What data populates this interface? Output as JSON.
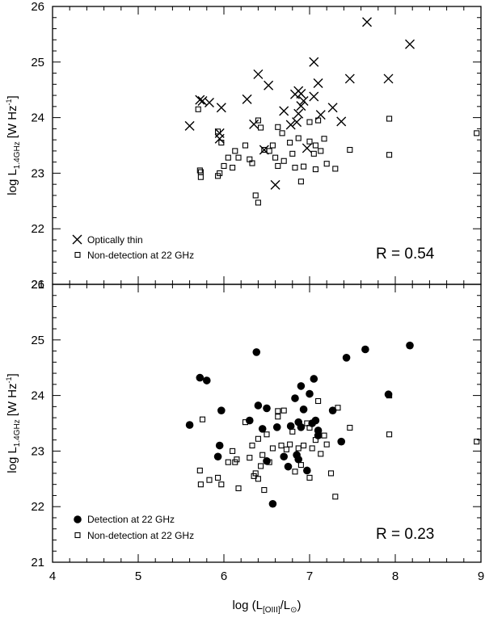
{
  "figure": {
    "top_panel": {
      "ylabel": {
        "main": "log L",
        "sub": "1.4GHz",
        "unit": "[W Hz",
        "unit_sup": "-1",
        "unit_close": "]"
      },
      "legend": [
        "Optically thin",
        "Non-detection at 22 GHz"
      ],
      "r_label": "R = 0.54"
    },
    "bottom_panel": {
      "ylabel": {
        "main": "log L",
        "sub": "1.4GHz",
        "unit": "[W Hz",
        "unit_sup": "-1",
        "unit_close": "]"
      },
      "legend": [
        "Detection at 22 GHz",
        "Non-detection at 22 GHz"
      ],
      "r_label": "R = 0.23"
    },
    "xlabel": {
      "prefix": "log (L",
      "sub": "[OIII]",
      "mid": "/L",
      "sub2": "⊙",
      "suffix": ")"
    }
  },
  "chart_data": [
    {
      "type": "scatter",
      "title": "",
      "xlabel": "log (L[OIII]/L⊙)",
      "ylabel": "log L1.4GHz [W Hz-1]",
      "xlim": [
        4,
        9
      ],
      "ylim": [
        21,
        26
      ],
      "xticks": [
        4,
        5,
        6,
        7,
        8,
        9
      ],
      "yticks": [
        21,
        22,
        23,
        24,
        25,
        26
      ],
      "xtick_labels": [
        "4",
        "5",
        "6",
        "7",
        "8",
        "9"
      ],
      "ytick_labels": [
        "21",
        "22",
        "23",
        "24",
        "25",
        "26"
      ],
      "grid": false,
      "legend_position": "bottom-left",
      "annotation": "R = 0.54",
      "series": [
        {
          "name": "Optically thin",
          "marker": "x",
          "points": [
            [
              5.6,
              23.85
            ],
            [
              5.72,
              24.32
            ],
            [
              5.75,
              24.3
            ],
            [
              5.83,
              24.27
            ],
            [
              5.95,
              23.72
            ],
            [
              5.95,
              23.62
            ],
            [
              5.97,
              24.18
            ],
            [
              6.27,
              24.33
            ],
            [
              6.35,
              23.88
            ],
            [
              6.4,
              24.78
            ],
            [
              6.47,
              23.42
            ],
            [
              6.52,
              24.58
            ],
            [
              6.6,
              22.79
            ],
            [
              6.7,
              24.12
            ],
            [
              6.78,
              23.87
            ],
            [
              6.83,
              24.42
            ],
            [
              6.85,
              23.92
            ],
            [
              6.87,
              24.48
            ],
            [
              6.87,
              24.07
            ],
            [
              6.9,
              24.21
            ],
            [
              6.9,
              24.43
            ],
            [
              6.93,
              24.3
            ],
            [
              6.97,
              23.45
            ],
            [
              7.05,
              25.0
            ],
            [
              7.05,
              24.38
            ],
            [
              7.1,
              24.62
            ],
            [
              7.13,
              24.05
            ],
            [
              7.27,
              24.18
            ],
            [
              7.37,
              23.93
            ],
            [
              7.47,
              24.7
            ],
            [
              7.67,
              25.72
            ],
            [
              7.92,
              24.7
            ],
            [
              8.17,
              25.32
            ]
          ]
        },
        {
          "name": "Non-detection at 22 GHz",
          "marker": "square",
          "points": [
            [
              5.7,
              24.15
            ],
            [
              5.72,
              23.05
            ],
            [
              5.73,
              22.93
            ],
            [
              5.93,
              23.75
            ],
            [
              5.93,
              22.95
            ],
            [
              5.95,
              23.0
            ],
            [
              5.97,
              23.55
            ],
            [
              6.0,
              23.13
            ],
            [
              6.05,
              23.28
            ],
            [
              6.1,
              23.1
            ],
            [
              6.13,
              23.4
            ],
            [
              6.17,
              23.28
            ],
            [
              6.25,
              23.5
            ],
            [
              6.3,
              23.25
            ],
            [
              6.33,
              23.18
            ],
            [
              6.37,
              22.6
            ],
            [
              6.4,
              22.47
            ],
            [
              6.4,
              23.95
            ],
            [
              6.43,
              23.82
            ],
            [
              6.47,
              23.42
            ],
            [
              6.53,
              23.4
            ],
            [
              6.57,
              23.5
            ],
            [
              6.6,
              23.28
            ],
            [
              6.63,
              23.13
            ],
            [
              6.68,
              23.72
            ],
            [
              6.7,
              23.22
            ],
            [
              6.77,
              23.55
            ],
            [
              6.8,
              23.35
            ],
            [
              6.83,
              23.1
            ],
            [
              6.87,
              23.63
            ],
            [
              6.9,
              22.85
            ],
            [
              6.93,
              23.12
            ],
            [
              7.0,
              23.57
            ],
            [
              7.05,
              23.35
            ],
            [
              7.07,
              23.5
            ],
            [
              7.07,
              23.07
            ],
            [
              7.1,
              23.95
            ],
            [
              7.13,
              23.4
            ],
            [
              7.17,
              23.62
            ],
            [
              7.2,
              23.17
            ],
            [
              7.3,
              23.08
            ],
            [
              7.47,
              23.42
            ],
            [
              5.73,
              23.02
            ],
            [
              6.63,
              23.83
            ],
            [
              7.0,
              23.92
            ],
            [
              7.93,
              23.33
            ],
            [
              7.93,
              23.98
            ],
            [
              8.95,
              23.72
            ]
          ]
        }
      ]
    },
    {
      "type": "scatter",
      "title": "",
      "xlabel": "log (L[OIII]/L⊙)",
      "ylabel": "log L1.4GHz [W Hz-1]",
      "xlim": [
        4,
        9
      ],
      "ylim": [
        21,
        26
      ],
      "xticks": [
        4,
        5,
        6,
        7,
        8,
        9
      ],
      "yticks": [
        21,
        22,
        23,
        24,
        25,
        26
      ],
      "xtick_labels": [
        "4",
        "5",
        "6",
        "7",
        "8",
        "9"
      ],
      "ytick_labels": [
        "21",
        "22",
        "23",
        "24",
        "25",
        "26"
      ],
      "grid": false,
      "legend_position": "bottom-left",
      "annotation": "R = 0.23",
      "series": [
        {
          "name": "Detection at 22 GHz",
          "marker": "circle",
          "points": [
            [
              5.6,
              23.47
            ],
            [
              5.72,
              24.32
            ],
            [
              5.8,
              24.27
            ],
            [
              5.93,
              22.9
            ],
            [
              5.95,
              23.1
            ],
            [
              5.97,
              23.73
            ],
            [
              6.3,
              23.55
            ],
            [
              6.38,
              24.78
            ],
            [
              6.4,
              23.82
            ],
            [
              6.45,
              23.4
            ],
            [
              6.5,
              23.77
            ],
            [
              6.5,
              22.82
            ],
            [
              6.57,
              22.05
            ],
            [
              6.62,
              23.43
            ],
            [
              6.7,
              22.9
            ],
            [
              6.75,
              22.72
            ],
            [
              6.78,
              23.45
            ],
            [
              6.83,
              23.95
            ],
            [
              6.85,
              22.93
            ],
            [
              6.87,
              23.52
            ],
            [
              6.87,
              22.85
            ],
            [
              6.9,
              24.17
            ],
            [
              6.9,
              23.43
            ],
            [
              6.93,
              23.75
            ],
            [
              6.97,
              22.65
            ],
            [
              7.0,
              24.03
            ],
            [
              7.05,
              24.3
            ],
            [
              7.07,
              23.55
            ],
            [
              7.1,
              23.37
            ],
            [
              7.27,
              23.73
            ],
            [
              7.37,
              23.17
            ],
            [
              7.43,
              24.68
            ],
            [
              7.65,
              24.83
            ],
            [
              7.92,
              24.02
            ],
            [
              8.17,
              24.9
            ],
            [
              7.1,
              23.28
            ],
            [
              7.03,
              23.5
            ]
          ]
        },
        {
          "name": "Non-detection at 22 GHz",
          "marker": "square",
          "points": [
            [
              5.72,
              22.65
            ],
            [
              5.73,
              22.4
            ],
            [
              5.75,
              23.57
            ],
            [
              5.83,
              22.48
            ],
            [
              5.93,
              22.52
            ],
            [
              5.97,
              22.4
            ],
            [
              6.05,
              22.8
            ],
            [
              6.1,
              23.0
            ],
            [
              6.13,
              22.8
            ],
            [
              6.15,
              22.85
            ],
            [
              6.17,
              22.33
            ],
            [
              6.25,
              23.52
            ],
            [
              6.3,
              22.88
            ],
            [
              6.33,
              23.1
            ],
            [
              6.35,
              22.55
            ],
            [
              6.37,
              22.6
            ],
            [
              6.4,
              22.5
            ],
            [
              6.4,
              23.22
            ],
            [
              6.43,
              22.73
            ],
            [
              6.45,
              22.93
            ],
            [
              6.47,
              22.3
            ],
            [
              6.5,
              23.3
            ],
            [
              6.53,
              22.8
            ],
            [
              6.57,
              23.05
            ],
            [
              6.63,
              23.62
            ],
            [
              6.67,
              23.1
            ],
            [
              6.7,
              23.73
            ],
            [
              6.73,
              23.03
            ],
            [
              6.77,
              23.12
            ],
            [
              6.8,
              23.35
            ],
            [
              6.83,
              22.63
            ],
            [
              6.87,
              23.05
            ],
            [
              6.9,
              22.75
            ],
            [
              6.93,
              23.1
            ],
            [
              6.97,
              23.5
            ],
            [
              7.0,
              22.52
            ],
            [
              7.03,
              23.05
            ],
            [
              7.07,
              23.2
            ],
            [
              7.1,
              23.9
            ],
            [
              7.13,
              22.95
            ],
            [
              7.17,
              23.28
            ],
            [
              7.2,
              23.12
            ],
            [
              7.25,
              22.6
            ],
            [
              7.3,
              22.18
            ],
            [
              7.33,
              23.78
            ],
            [
              7.47,
              23.42
            ],
            [
              7.93,
              23.3
            ],
            [
              7.93,
              24.0
            ],
            [
              8.95,
              23.17
            ],
            [
              6.63,
              23.72
            ],
            [
              7.0,
              23.42
            ]
          ]
        }
      ]
    }
  ]
}
